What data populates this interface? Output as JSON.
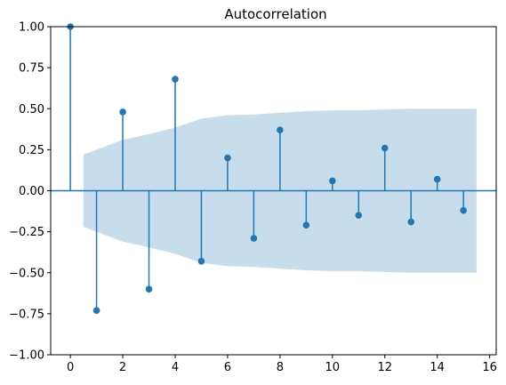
{
  "chart_data": {
    "type": "stem",
    "title": "Autocorrelation",
    "xlabel": "",
    "ylabel": "",
    "xlim": [
      -0.75,
      16.25
    ],
    "ylim": [
      -1.0,
      1.0
    ],
    "x_ticks": [
      0,
      2,
      4,
      6,
      8,
      10,
      12,
      14,
      16
    ],
    "y_ticks": [
      1.0,
      0.75,
      0.5,
      0.25,
      0.0,
      -0.25,
      -0.5,
      -0.75,
      -1.0
    ],
    "x_tick_labels": [
      "0",
      "2",
      "4",
      "6",
      "8",
      "10",
      "12",
      "14",
      "16"
    ],
    "y_tick_labels": [
      "1.00",
      "0.75",
      "0.50",
      "0.25",
      "0.00",
      "−0.25",
      "−0.50",
      "−0.75",
      "−1.00"
    ],
    "grid": false,
    "zero_line": true,
    "lags": [
      0,
      1,
      2,
      3,
      4,
      5,
      6,
      7,
      8,
      9,
      10,
      11,
      12,
      13,
      14,
      15
    ],
    "values": [
      1.0,
      -0.73,
      0.48,
      -0.6,
      0.68,
      -0.43,
      0.2,
      -0.29,
      0.37,
      -0.21,
      0.06,
      -0.15,
      0.26,
      -0.19,
      0.07,
      -0.12
    ],
    "confidence_band": {
      "x": [
        0.5,
        1,
        2,
        3,
        4,
        5,
        6,
        7,
        8,
        9,
        10,
        11,
        12,
        13,
        14,
        15,
        15.5
      ],
      "upper": [
        0.22,
        0.25,
        0.31,
        0.345,
        0.385,
        0.44,
        0.46,
        0.465,
        0.475,
        0.485,
        0.49,
        0.49,
        0.495,
        0.5,
        0.5,
        0.5,
        0.5
      ]
    },
    "colors": {
      "stem": "#1f77b4",
      "band": "#1f77b4",
      "band_opacity": 0.25
    }
  }
}
